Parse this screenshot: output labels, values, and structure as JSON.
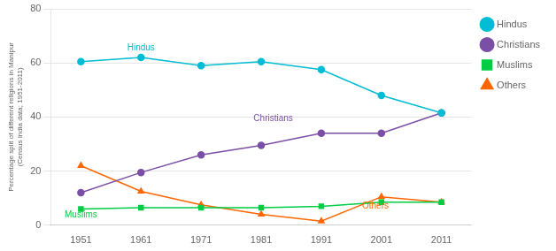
{
  "chart_data": {
    "type": "line",
    "x": [
      1951,
      1961,
      1971,
      1981,
      1991,
      2001,
      2011
    ],
    "series": [
      {
        "name": "Hindus",
        "color": "#00bcd4",
        "marker": "circle",
        "values": [
          60.5,
          62.0,
          59.0,
          60.5,
          57.5,
          48.0,
          41.5
        ]
      },
      {
        "name": "Christians",
        "color": "#7b4fa6",
        "marker": "circle",
        "values": [
          12.0,
          19.5,
          26.0,
          29.5,
          34.0,
          34.0,
          41.5
        ]
      },
      {
        "name": "Muslims",
        "color": "#00cc44",
        "marker": "square",
        "values": [
          6.0,
          6.5,
          6.5,
          6.5,
          7.0,
          8.5,
          8.5
        ]
      },
      {
        "name": "Others",
        "color": "#ff6600",
        "marker": "triangle",
        "values": [
          22.0,
          12.5,
          7.5,
          4.0,
          1.5,
          10.5,
          8.5
        ]
      }
    ],
    "ylabel": "Percentage split of different religions in Manipur\n(Census India data; 1951-2011)",
    "xlim": [
      1946,
      2016
    ],
    "xticks": [
      1951,
      1961,
      1971,
      1981,
      1991,
      2001,
      2011
    ],
    "ylim": [
      0,
      80
    ],
    "yticks": [
      0,
      20,
      40,
      60,
      80
    ],
    "grid": "y",
    "legend": "right",
    "annotations": [
      {
        "text": "Hindus",
        "x": 1961,
        "y": 64.5,
        "color": "#00bcd4"
      },
      {
        "text": "Christians",
        "x": 1983,
        "y": 38.5,
        "color": "#7b4fa6"
      },
      {
        "text": "Muslims",
        "x": 1951,
        "y": 3.0,
        "color": "#00cc44"
      },
      {
        "text": "Others",
        "x": 2000,
        "y": 6.0,
        "color": "#ff6600"
      }
    ]
  }
}
